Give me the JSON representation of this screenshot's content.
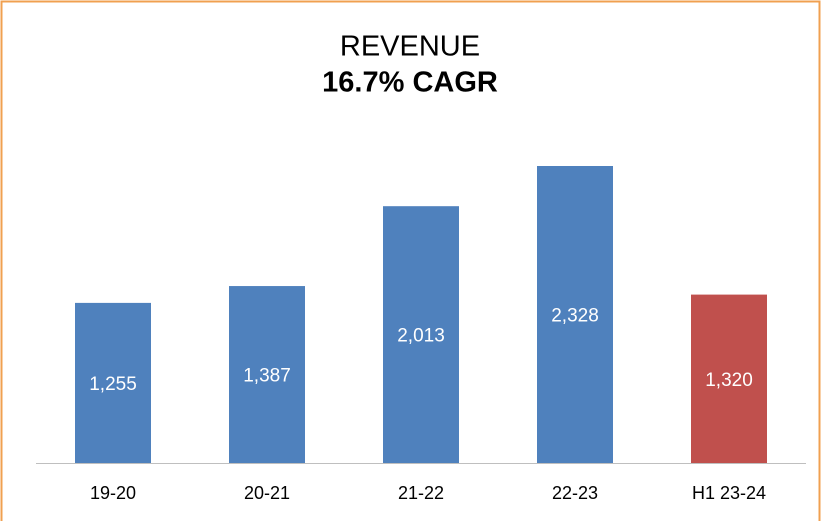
{
  "chart_data": {
    "type": "bar",
    "title": "REVENUE",
    "subtitle": "16.7% CAGR",
    "categories": [
      "19-20",
      "20-21",
      "21-22",
      "22-23",
      "H1 23-24"
    ],
    "values": [
      1255,
      1387,
      2013,
      2328,
      1320
    ],
    "value_labels": [
      "1,255",
      "1,387",
      "2,013",
      "2,328",
      "1,320"
    ],
    "colors": [
      "#4f81bd",
      "#4f81bd",
      "#4f81bd",
      "#4f81bd",
      "#c0504d"
    ]
  }
}
